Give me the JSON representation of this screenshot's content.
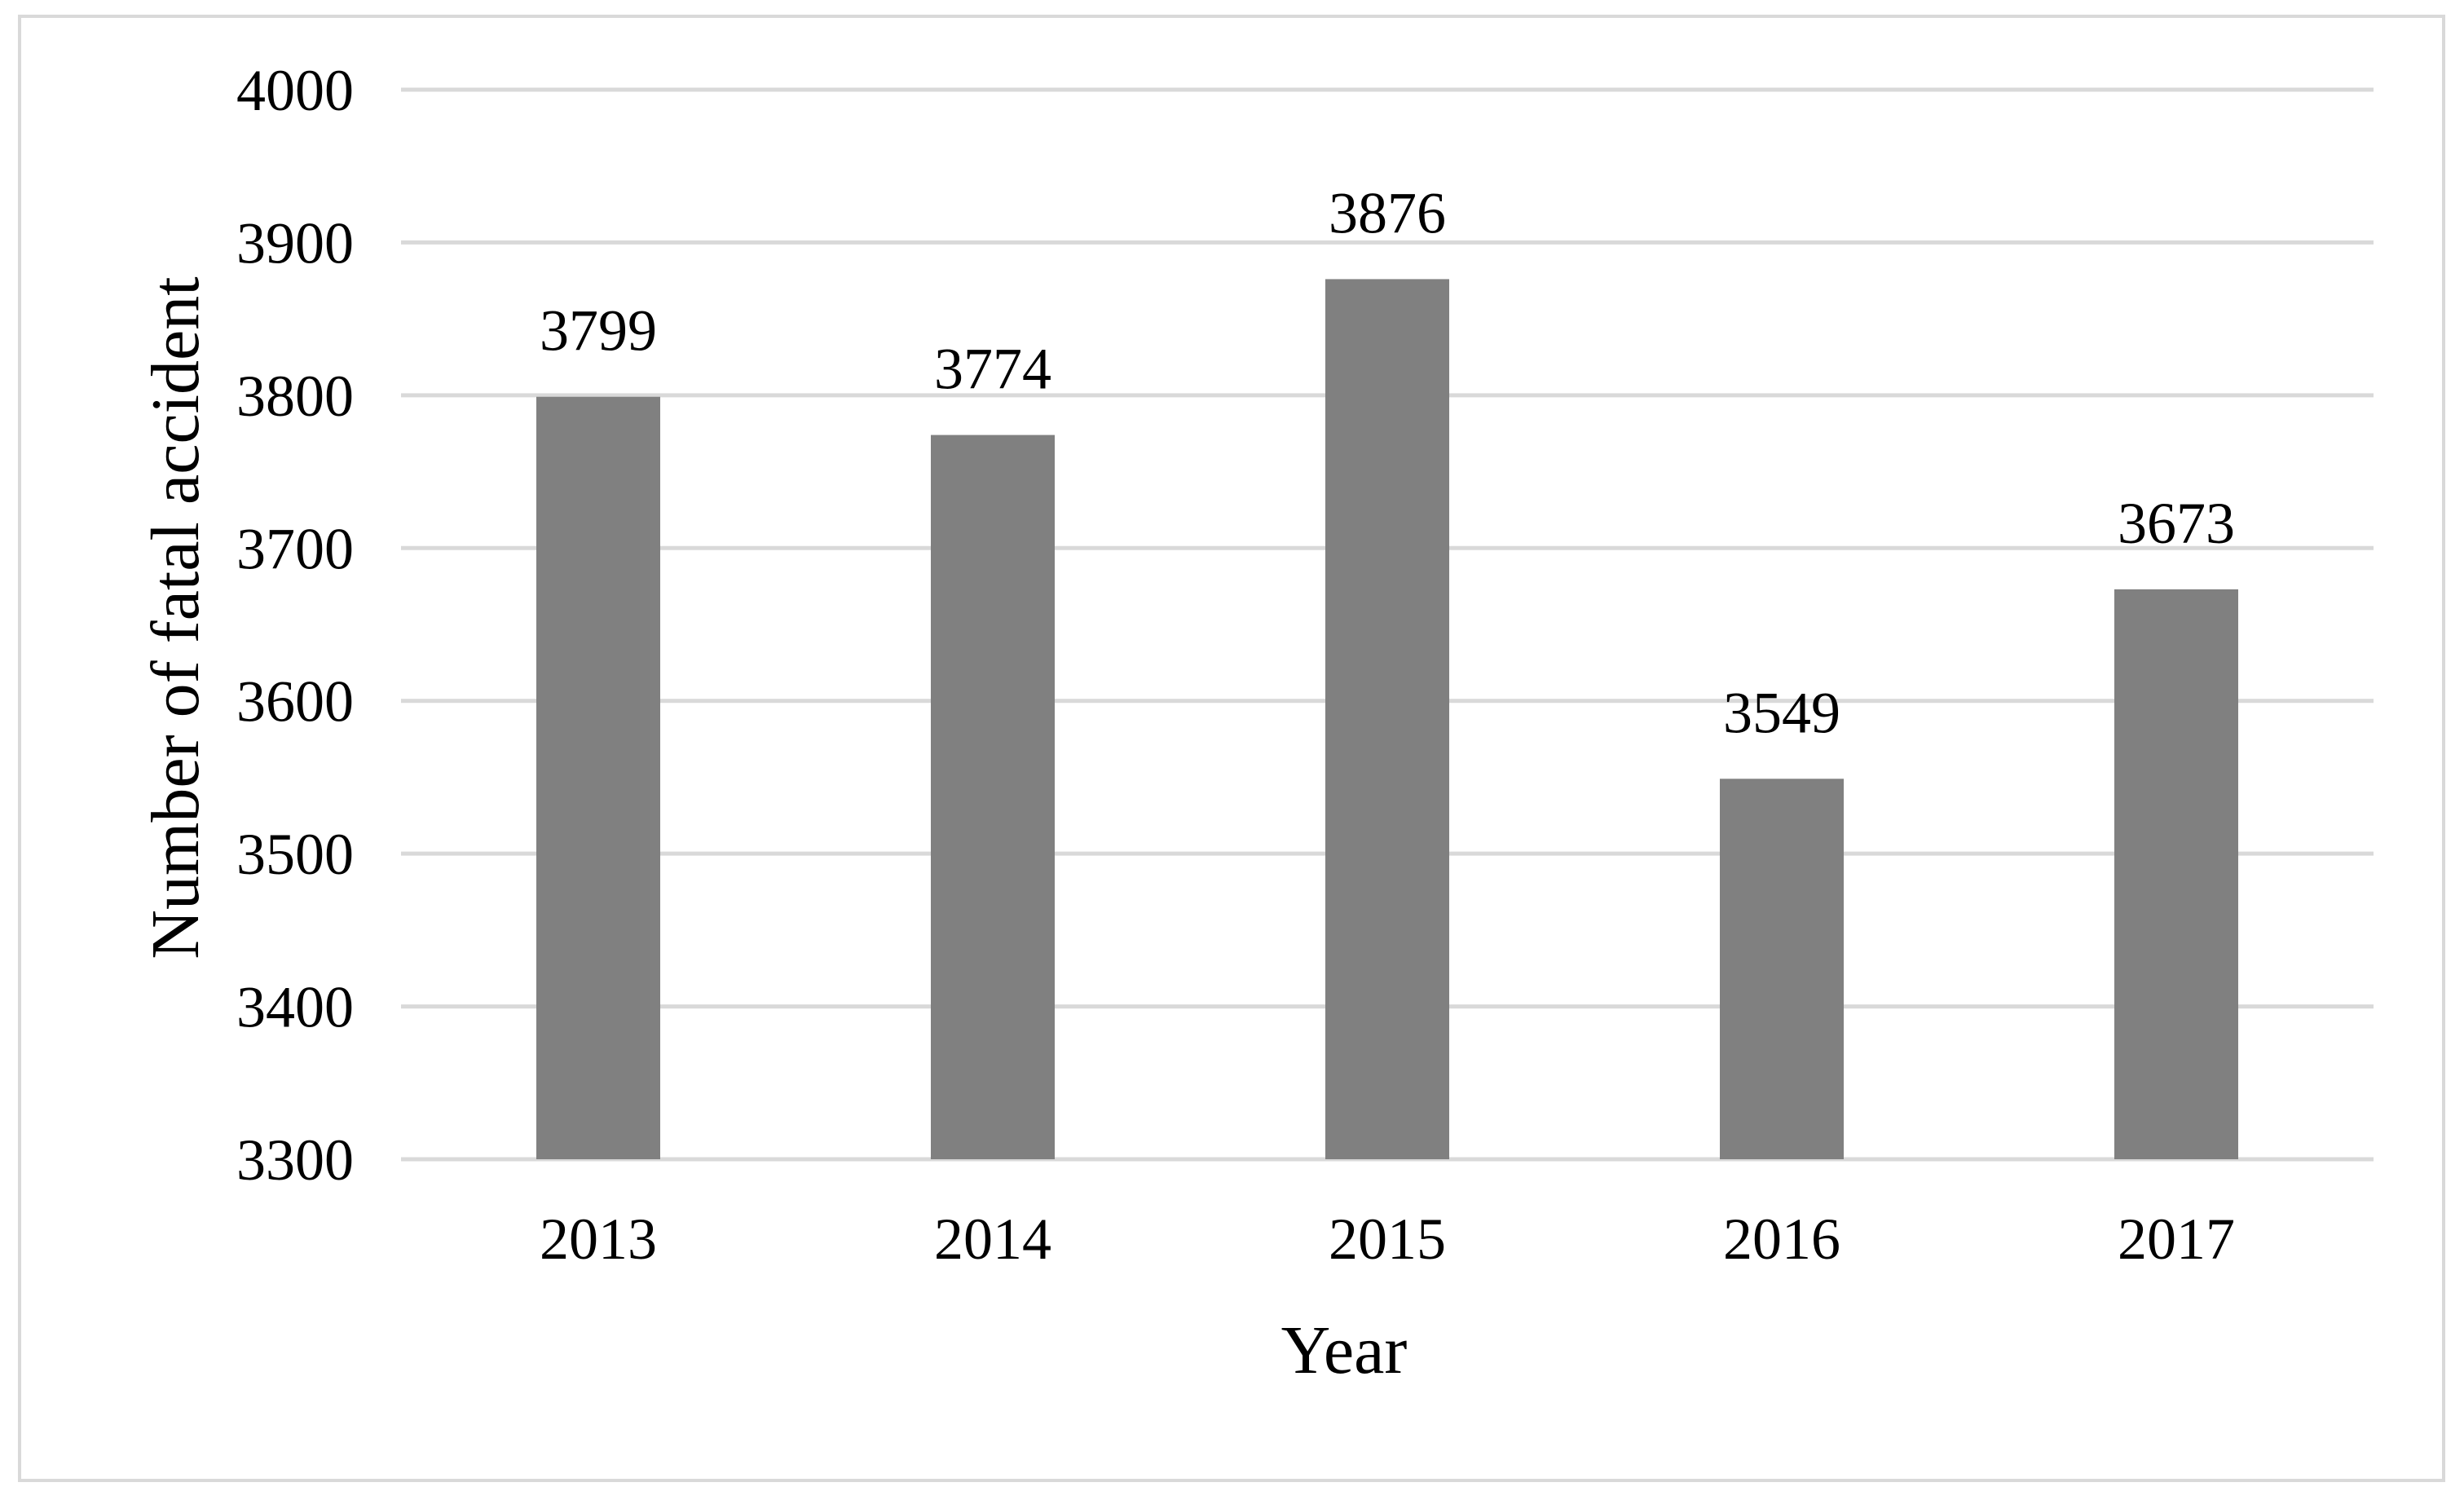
{
  "chart_data": {
    "type": "bar",
    "title": "",
    "xlabel": "Year",
    "ylabel": "Number of fatal accident",
    "categories": [
      "2013",
      "2014",
      "2015",
      "2016",
      "2017"
    ],
    "values": [
      3799,
      3774,
      3876,
      3549,
      3673
    ],
    "ylim": [
      3300,
      4000
    ],
    "yticks": [
      3300,
      3400,
      3500,
      3600,
      3700,
      3800,
      3900,
      4000
    ],
    "grid": true,
    "legend": "none",
    "data_labels": true,
    "bar_color": "#808080",
    "grid_color": "#d9d9d9"
  }
}
